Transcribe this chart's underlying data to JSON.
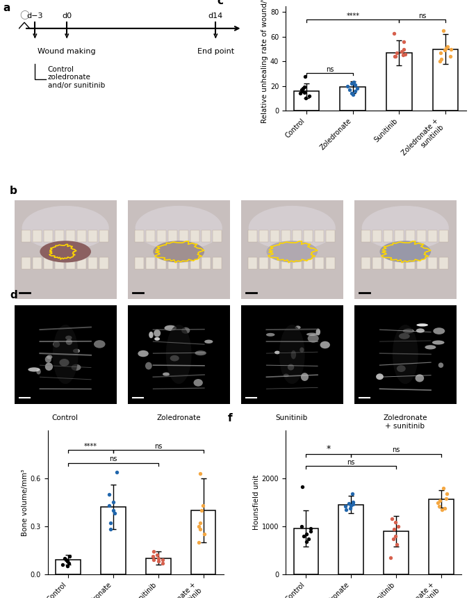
{
  "panel_c": {
    "ylabel": "Relative unhealing rate of wound/%",
    "categories": [
      "Control",
      "Zoledronate",
      "Sunitinib",
      "Zoledronate +\nsunitinib"
    ],
    "bar_means": [
      16,
      19,
      47,
      50
    ],
    "bar_errors": [
      6,
      5,
      10,
      12
    ],
    "dot_colors": [
      "black",
      "#2166ac",
      "#d6604d",
      "#f4a742"
    ],
    "dots": [
      [
        10,
        12,
        14,
        15,
        16,
        17,
        18,
        19,
        28
      ],
      [
        13,
        14,
        16,
        17,
        18,
        20,
        21,
        22,
        23
      ],
      [
        44,
        44,
        45,
        46,
        47,
        48,
        50,
        56,
        63
      ],
      [
        40,
        42,
        44,
        47,
        49,
        50,
        51,
        52,
        65
      ]
    ],
    "ylim": [
      0,
      85
    ],
    "yticks": [
      0,
      20,
      40,
      60,
      80
    ]
  },
  "panel_e": {
    "ylabel": "Bone volume/mm³",
    "categories": [
      "Control",
      "Zoledronate",
      "Sunitinib",
      "Zoledronate +\nsunitinib"
    ],
    "bar_means": [
      0.09,
      0.42,
      0.1,
      0.4
    ],
    "bar_errors": [
      0.03,
      0.14,
      0.04,
      0.2
    ],
    "dot_colors": [
      "black",
      "#2166ac",
      "#d6604d",
      "#f4a742"
    ],
    "dots": [
      [
        0.05,
        0.06,
        0.07,
        0.08,
        0.08,
        0.09,
        0.1,
        0.11
      ],
      [
        0.28,
        0.32,
        0.38,
        0.4,
        0.43,
        0.45,
        0.5,
        0.64
      ],
      [
        0.07,
        0.08,
        0.09,
        0.09,
        0.1,
        0.11,
        0.12,
        0.14
      ],
      [
        0.2,
        0.25,
        0.28,
        0.3,
        0.32,
        0.4,
        0.43,
        0.63
      ]
    ],
    "ylim": [
      0,
      0.9
    ],
    "yticks": [
      0.0,
      0.3,
      0.6
    ]
  },
  "panel_f": {
    "ylabel": "Hounsfield unit",
    "categories": [
      "Control",
      "Zoledronate",
      "Sunitinib",
      "Zoledronate +\nsunitinib"
    ],
    "bar_means": [
      950,
      1450,
      900,
      1570
    ],
    "bar_errors": [
      380,
      180,
      320,
      180
    ],
    "dot_colors": [
      "black",
      "#2166ac",
      "#d6604d",
      "#f4a742"
    ],
    "dots": [
      [
        680,
        740,
        790,
        840,
        900,
        950,
        1000,
        1820
      ],
      [
        1340,
        1380,
        1420,
        1440,
        1460,
        1480,
        1500,
        1680
      ],
      [
        350,
        620,
        730,
        800,
        940,
        1000,
        1080,
        1150
      ],
      [
        1340,
        1380,
        1420,
        1490,
        1540,
        1580,
        1680,
        1800
      ]
    ],
    "ylim": [
      0,
      3000
    ],
    "yticks": [
      0,
      1000,
      2000
    ]
  },
  "photo_labels_b": [
    "Control",
    "Zoledronate",
    "Sunitinib",
    "Zoledronate\n+ sunitinib"
  ],
  "photo_labels_d": [
    "Control",
    "Zoledronate",
    "Sunitinib",
    "Zoledronate\n+ sunitinib"
  ]
}
